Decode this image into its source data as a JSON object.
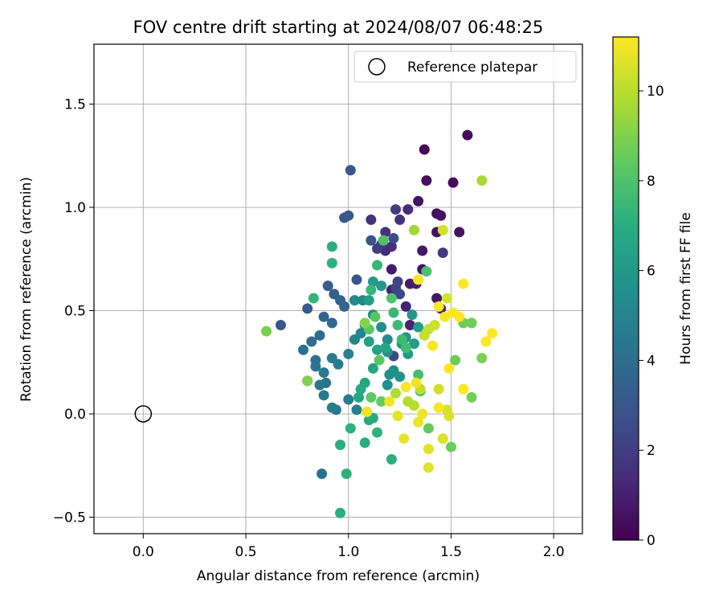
{
  "chart_data": {
    "type": "scatter",
    "title": "FOV centre drift starting at 2024/08/07 06:48:25",
    "xlabel": "Angular distance from reference (arcmin)",
    "ylabel": "Rotation from reference (arcmin)",
    "xlim": [
      -0.24,
      2.14
    ],
    "ylim": [
      -0.58,
      1.79
    ],
    "xticks": [
      0.0,
      0.5,
      1.0,
      1.5,
      2.0
    ],
    "xtick_labels": [
      "0.0",
      "0.5",
      "1.0",
      "1.5",
      "2.0"
    ],
    "yticks": [
      -0.5,
      0.0,
      0.5,
      1.0,
      1.5
    ],
    "ytick_labels": [
      "−0.5",
      "0.0",
      "0.5",
      "1.0",
      "1.5"
    ],
    "grid": true,
    "legend": {
      "position": "top-right",
      "entries": [
        "Reference platepar"
      ]
    },
    "reference_point": {
      "x": 0.0,
      "y": 0.0,
      "marker": "open-circle"
    },
    "colorbar": {
      "label": "Hours from first FF file",
      "colormap": "viridis",
      "range": [
        0,
        11.2
      ],
      "ticks": [
        0,
        2,
        4,
        6,
        8,
        10
      ],
      "tick_labels": [
        "0",
        "2",
        "4",
        "6",
        "8",
        "10"
      ]
    },
    "points": [
      {
        "x": 1.58,
        "y": 1.35,
        "h": 0.3
      },
      {
        "x": 1.37,
        "y": 1.28,
        "h": 0.3
      },
      {
        "x": 1.38,
        "y": 1.13,
        "h": 0.4
      },
      {
        "x": 1.51,
        "y": 1.12,
        "h": 0.3
      },
      {
        "x": 1.34,
        "y": 1.03,
        "h": 0.5
      },
      {
        "x": 1.43,
        "y": 0.97,
        "h": 0.4
      },
      {
        "x": 1.45,
        "y": 0.96,
        "h": 0.5
      },
      {
        "x": 1.43,
        "y": 0.88,
        "h": 0.4
      },
      {
        "x": 1.54,
        "y": 0.88,
        "h": 0.5
      },
      {
        "x": 1.36,
        "y": 0.79,
        "h": 0.7
      },
      {
        "x": 1.21,
        "y": 0.7,
        "h": 0.8
      },
      {
        "x": 1.36,
        "y": 0.7,
        "h": 0.6
      },
      {
        "x": 1.3,
        "y": 0.63,
        "h": 0.9
      },
      {
        "x": 1.33,
        "y": 0.63,
        "h": 1.0
      },
      {
        "x": 1.43,
        "y": 0.56,
        "h": 0.7
      },
      {
        "x": 1.21,
        "y": 0.6,
        "h": 1.0
      },
      {
        "x": 1.45,
        "y": 0.51,
        "h": 1.0
      },
      {
        "x": 1.28,
        "y": 0.52,
        "h": 1.1
      },
      {
        "x": 1.3,
        "y": 0.43,
        "h": 1.1
      },
      {
        "x": 1.18,
        "y": 0.79,
        "h": 1.3
      },
      {
        "x": 1.21,
        "y": 0.81,
        "h": 1.4
      },
      {
        "x": 1.29,
        "y": 0.99,
        "h": 1.4
      },
      {
        "x": 1.25,
        "y": 0.94,
        "h": 1.6
      },
      {
        "x": 1.11,
        "y": 0.94,
        "h": 1.6
      },
      {
        "x": 1.18,
        "y": 0.88,
        "h": 1.6
      },
      {
        "x": 1.16,
        "y": 0.82,
        "h": 1.8
      },
      {
        "x": 1.46,
        "y": 0.78,
        "h": 1.8
      },
      {
        "x": 1.23,
        "y": 0.99,
        "h": 2.0
      },
      {
        "x": 1.14,
        "y": 0.8,
        "h": 2.0
      },
      {
        "x": 1.24,
        "y": 0.64,
        "h": 2.2
      },
      {
        "x": 1.23,
        "y": 0.61,
        "h": 2.3
      },
      {
        "x": 1.25,
        "y": 0.58,
        "h": 2.4
      },
      {
        "x": 1.22,
        "y": 0.28,
        "h": 2.5
      },
      {
        "x": 1.22,
        "y": 0.85,
        "h": 2.6
      },
      {
        "x": 1.11,
        "y": 0.84,
        "h": 2.9
      },
      {
        "x": 1.01,
        "y": 1.18,
        "h": 3.0
      },
      {
        "x": 0.98,
        "y": 0.95,
        "h": 3.0
      },
      {
        "x": 1.0,
        "y": 0.96,
        "h": 3.1
      },
      {
        "x": 1.04,
        "y": 0.65,
        "h": 3.0
      },
      {
        "x": 0.67,
        "y": 0.43,
        "h": 3.1
      },
      {
        "x": 0.8,
        "y": 0.51,
        "h": 3.2
      },
      {
        "x": 0.9,
        "y": 0.62,
        "h": 3.3
      },
      {
        "x": 0.93,
        "y": 0.58,
        "h": 3.4
      },
      {
        "x": 0.96,
        "y": 0.55,
        "h": 3.5
      },
      {
        "x": 0.98,
        "y": 0.52,
        "h": 3.7
      },
      {
        "x": 0.92,
        "y": 0.44,
        "h": 3.8
      },
      {
        "x": 0.88,
        "y": 0.47,
        "h": 3.6
      },
      {
        "x": 0.86,
        "y": 0.38,
        "h": 3.9
      },
      {
        "x": 0.82,
        "y": 0.35,
        "h": 4.0
      },
      {
        "x": 0.78,
        "y": 0.31,
        "h": 4.1
      },
      {
        "x": 0.84,
        "y": 0.26,
        "h": 4.2
      },
      {
        "x": 0.84,
        "y": 0.23,
        "h": 4.3
      },
      {
        "x": 0.88,
        "y": 0.2,
        "h": 4.4
      },
      {
        "x": 0.89,
        "y": 0.15,
        "h": 4.3
      },
      {
        "x": 0.86,
        "y": 0.14,
        "h": 4.4
      },
      {
        "x": 0.88,
        "y": 0.09,
        "h": 4.5
      },
      {
        "x": 0.8,
        "y": 0.16,
        "h": 4.6
      },
      {
        "x": 0.94,
        "y": 0.02,
        "h": 4.4
      },
      {
        "x": 0.92,
        "y": 0.03,
        "h": 4.6
      },
      {
        "x": 0.87,
        "y": -0.29,
        "h": 4.2
      },
      {
        "x": 1.0,
        "y": 0.07,
        "h": 4.7
      },
      {
        "x": 1.04,
        "y": 0.02,
        "h": 4.8
      },
      {
        "x": 0.92,
        "y": 0.27,
        "h": 4.7
      },
      {
        "x": 0.95,
        "y": 0.24,
        "h": 4.8
      },
      {
        "x": 1.0,
        "y": 0.29,
        "h": 4.9
      },
      {
        "x": 1.03,
        "y": 0.36,
        "h": 5.0
      },
      {
        "x": 1.06,
        "y": 0.39,
        "h": 5.0
      },
      {
        "x": 1.08,
        "y": 0.43,
        "h": 5.1
      },
      {
        "x": 1.07,
        "y": 0.55,
        "h": 5.2
      },
      {
        "x": 1.03,
        "y": 0.55,
        "h": 5.2
      },
      {
        "x": 1.12,
        "y": 0.48,
        "h": 5.3
      },
      {
        "x": 1.16,
        "y": 0.42,
        "h": 5.4
      },
      {
        "x": 1.19,
        "y": 0.36,
        "h": 5.4
      },
      {
        "x": 1.19,
        "y": 0.3,
        "h": 5.5
      },
      {
        "x": 1.22,
        "y": 0.21,
        "h": 5.5
      },
      {
        "x": 1.2,
        "y": 0.19,
        "h": 5.6
      },
      {
        "x": 1.19,
        "y": 0.14,
        "h": 5.6
      },
      {
        "x": 1.25,
        "y": 0.18,
        "h": 5.7
      },
      {
        "x": 1.28,
        "y": 0.37,
        "h": 5.8
      },
      {
        "x": 1.31,
        "y": 0.48,
        "h": 5.9
      },
      {
        "x": 1.26,
        "y": 0.34,
        "h": 5.8
      },
      {
        "x": 1.29,
        "y": 0.29,
        "h": 6.0
      },
      {
        "x": 1.32,
        "y": 0.34,
        "h": 6.1
      },
      {
        "x": 1.34,
        "y": 0.42,
        "h": 6.2
      },
      {
        "x": 1.16,
        "y": 0.62,
        "h": 6.0
      },
      {
        "x": 1.12,
        "y": 0.64,
        "h": 6.1
      },
      {
        "x": 1.1,
        "y": 0.55,
        "h": 6.2
      },
      {
        "x": 1.1,
        "y": 0.35,
        "h": 6.3
      },
      {
        "x": 1.14,
        "y": 0.31,
        "h": 6.4
      },
      {
        "x": 1.18,
        "y": 0.32,
        "h": 6.5
      },
      {
        "x": 1.12,
        "y": 0.22,
        "h": 6.5
      },
      {
        "x": 1.08,
        "y": 0.15,
        "h": 6.6
      },
      {
        "x": 1.06,
        "y": 0.12,
        "h": 6.7
      },
      {
        "x": 1.05,
        "y": 0.08,
        "h": 6.6
      },
      {
        "x": 1.12,
        "y": -0.02,
        "h": 6.8
      },
      {
        "x": 1.1,
        "y": -0.03,
        "h": 6.8
      },
      {
        "x": 1.08,
        "y": -0.14,
        "h": 6.9
      },
      {
        "x": 0.96,
        "y": -0.15,
        "h": 7.0
      },
      {
        "x": 0.96,
        "y": -0.48,
        "h": 7.0
      },
      {
        "x": 0.99,
        "y": -0.29,
        "h": 7.1
      },
      {
        "x": 1.21,
        "y": -0.22,
        "h": 7.1
      },
      {
        "x": 1.14,
        "y": -0.09,
        "h": 7.2
      },
      {
        "x": 1.01,
        "y": -0.07,
        "h": 7.2
      },
      {
        "x": 0.92,
        "y": 0.81,
        "h": 7.0
      },
      {
        "x": 0.92,
        "y": 0.73,
        "h": 7.1
      },
      {
        "x": 0.83,
        "y": 0.56,
        "h": 7.3
      },
      {
        "x": 1.11,
        "y": 0.6,
        "h": 7.4
      },
      {
        "x": 1.14,
        "y": 0.72,
        "h": 7.4
      },
      {
        "x": 1.22,
        "y": 0.49,
        "h": 7.5
      },
      {
        "x": 1.24,
        "y": 0.43,
        "h": 7.6
      },
      {
        "x": 1.26,
        "y": 0.36,
        "h": 7.6
      },
      {
        "x": 1.28,
        "y": 0.32,
        "h": 7.7
      },
      {
        "x": 1.34,
        "y": 0.19,
        "h": 7.8
      },
      {
        "x": 1.35,
        "y": 0.11,
        "h": 7.9
      },
      {
        "x": 1.38,
        "y": 0.69,
        "h": 7.9
      },
      {
        "x": 1.17,
        "y": 0.84,
        "h": 8.0
      },
      {
        "x": 1.21,
        "y": 0.56,
        "h": 8.1
      },
      {
        "x": 1.13,
        "y": 0.47,
        "h": 8.2
      },
      {
        "x": 1.1,
        "y": 0.41,
        "h": 8.3
      },
      {
        "x": 1.15,
        "y": 0.26,
        "h": 8.3
      },
      {
        "x": 1.11,
        "y": 0.08,
        "h": 8.4
      },
      {
        "x": 1.16,
        "y": 0.06,
        "h": 8.5
      },
      {
        "x": 1.39,
        "y": -0.07,
        "h": 8.5
      },
      {
        "x": 1.5,
        "y": -0.16,
        "h": 8.6
      },
      {
        "x": 1.52,
        "y": 0.26,
        "h": 8.6
      },
      {
        "x": 1.56,
        "y": 0.44,
        "h": 8.7
      },
      {
        "x": 1.6,
        "y": 0.44,
        "h": 8.7
      },
      {
        "x": 1.6,
        "y": 0.08,
        "h": 8.8
      },
      {
        "x": 1.65,
        "y": 0.27,
        "h": 8.9
      },
      {
        "x": 0.6,
        "y": 0.4,
        "h": 8.9
      },
      {
        "x": 0.8,
        "y": 0.16,
        "h": 9.0
      },
      {
        "x": 1.08,
        "y": 0.44,
        "h": 9.1
      },
      {
        "x": 1.32,
        "y": 0.89,
        "h": 9.6
      },
      {
        "x": 1.65,
        "y": 1.13,
        "h": 9.7
      },
      {
        "x": 1.23,
        "y": 0.1,
        "h": 9.8
      },
      {
        "x": 1.29,
        "y": 0.06,
        "h": 9.9
      },
      {
        "x": 1.32,
        "y": 0.04,
        "h": 10.0
      },
      {
        "x": 1.35,
        "y": 0.12,
        "h": 10.1
      },
      {
        "x": 1.37,
        "y": 0.38,
        "h": 10.2
      },
      {
        "x": 1.39,
        "y": 0.41,
        "h": 10.2
      },
      {
        "x": 1.42,
        "y": 0.43,
        "h": 10.3
      },
      {
        "x": 1.44,
        "y": 0.12,
        "h": 10.4
      },
      {
        "x": 1.46,
        "y": 0.89,
        "h": 10.4
      },
      {
        "x": 1.48,
        "y": 0.56,
        "h": 10.5
      },
      {
        "x": 1.48,
        "y": 0.02,
        "h": 10.5
      },
      {
        "x": 1.49,
        "y": -0.01,
        "h": 10.6
      },
      {
        "x": 1.46,
        "y": -0.12,
        "h": 10.6
      },
      {
        "x": 1.39,
        "y": -0.26,
        "h": 10.7
      },
      {
        "x": 1.39,
        "y": -0.17,
        "h": 10.7
      },
      {
        "x": 1.27,
        "y": -0.12,
        "h": 10.8
      },
      {
        "x": 1.24,
        "y": -0.01,
        "h": 10.8
      },
      {
        "x": 1.34,
        "y": -0.04,
        "h": 10.9
      },
      {
        "x": 1.36,
        "y": 0.0,
        "h": 10.9
      },
      {
        "x": 1.09,
        "y": 0.01,
        "h": 11.0
      },
      {
        "x": 1.2,
        "y": 0.06,
        "h": 11.0
      },
      {
        "x": 1.33,
        "y": 0.15,
        "h": 11.0
      },
      {
        "x": 1.41,
        "y": 0.33,
        "h": 11.1
      },
      {
        "x": 1.44,
        "y": 0.52,
        "h": 11.1
      },
      {
        "x": 1.47,
        "y": 0.47,
        "h": 11.1
      },
      {
        "x": 1.51,
        "y": 0.49,
        "h": 11.2
      },
      {
        "x": 1.54,
        "y": 0.47,
        "h": 11.2
      },
      {
        "x": 1.56,
        "y": 0.63,
        "h": 11.2
      },
      {
        "x": 1.49,
        "y": 0.22,
        "h": 11.2
      },
      {
        "x": 1.56,
        "y": 0.12,
        "h": 11.2
      },
      {
        "x": 1.67,
        "y": 0.35,
        "h": 11.2
      },
      {
        "x": 1.7,
        "y": 0.39,
        "h": 11.2
      },
      {
        "x": 1.34,
        "y": 0.65,
        "h": 11.1
      },
      {
        "x": 1.44,
        "y": 0.03,
        "h": 11.1
      },
      {
        "x": 1.28,
        "y": 0.13,
        "h": 11.2
      }
    ]
  }
}
